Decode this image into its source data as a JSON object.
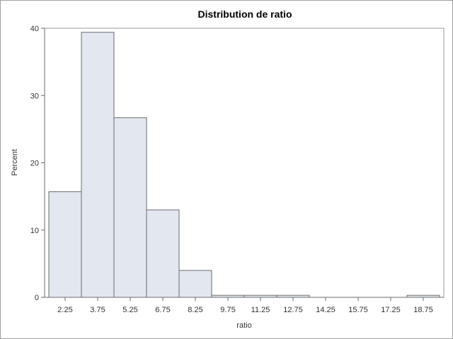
{
  "chart_data": {
    "type": "bar",
    "title": "Distribution de ratio",
    "xlabel": "ratio",
    "ylabel": "Percent",
    "ylim": [
      0,
      40
    ],
    "yticks": [
      "0",
      "10",
      "20",
      "30",
      "40"
    ],
    "categories": [
      "2.25",
      "3.75",
      "5.25",
      "6.75",
      "8.25",
      "9.75",
      "11.25",
      "12.75",
      "14.25",
      "15.75",
      "17.25",
      "18.75"
    ],
    "values": [
      15.7,
      39.4,
      26.7,
      13.0,
      4.0,
      0.3,
      0.3,
      0.3,
      0,
      0,
      0,
      0.3
    ],
    "bar_fill": "#e3e7f0",
    "bar_stroke": "#6b6b6b",
    "grid": false,
    "legend": "none"
  }
}
